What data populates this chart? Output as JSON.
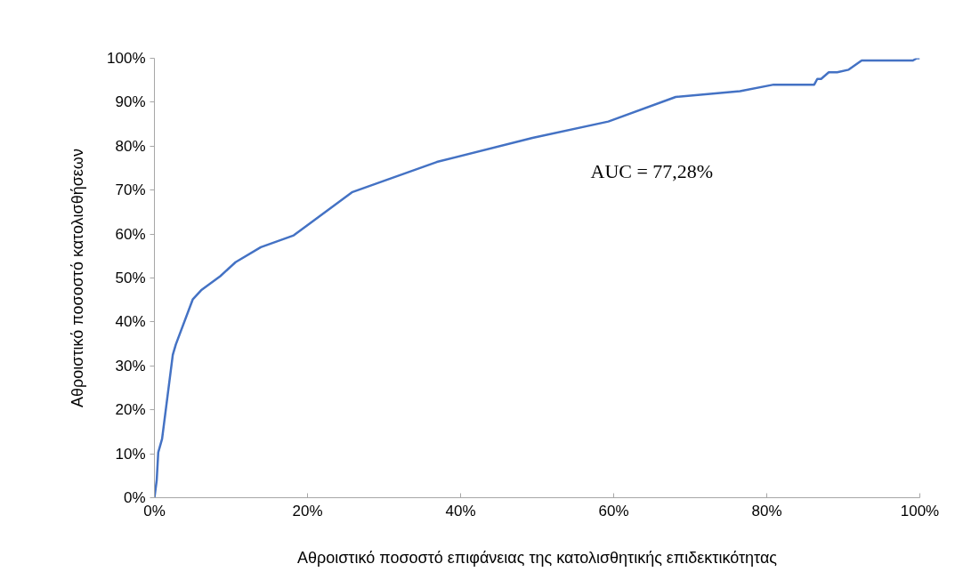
{
  "chart_data": {
    "type": "line",
    "xlabel": "Αθροιστικό ποσοστό επιφάνειας της κατολισθητικής επιδεκτικότητας",
    "ylabel": "Αθροιστικό ποσοστό κατολισθήσεων",
    "annotations": [
      "AUC = 77,28%"
    ],
    "x": [
      0,
      0.3,
      0.5,
      1.0,
      2.4,
      2.8,
      5.0,
      6.1,
      8.6,
      10.6,
      13.9,
      18.2,
      25.8,
      36.9,
      49.4,
      59.3,
      68.1,
      76.5,
      80.9,
      86.2,
      86.6,
      87.1,
      88.1,
      89.2,
      90.7,
      92.4,
      99.1,
      99.6,
      100
    ],
    "series": [
      {
        "color": "#4472c4",
        "values": [
          0,
          4,
          10.3,
          13.4,
          32.5,
          34.9,
          45.1,
          47.2,
          50.4,
          53.6,
          57.0,
          59.7,
          69.5,
          76.4,
          81.9,
          85.6,
          91.2,
          92.5,
          94.0,
          94.0,
          95.3,
          95.3,
          96.8,
          96.8,
          97.4,
          99.5,
          99.5,
          100,
          100
        ]
      }
    ],
    "xlim": [
      0,
      100
    ],
    "ylim": [
      0,
      100
    ],
    "xticks": [
      {
        "value": 0,
        "label": "0%"
      },
      {
        "value": 20,
        "label": "20%"
      },
      {
        "value": 40,
        "label": "40%"
      },
      {
        "value": 60,
        "label": "60%"
      },
      {
        "value": 80,
        "label": "80%"
      },
      {
        "value": 100,
        "label": "100%"
      }
    ],
    "yticks": [
      {
        "value": 0,
        "label": "0%"
      },
      {
        "value": 10,
        "label": "10%"
      },
      {
        "value": 20,
        "label": "20%"
      },
      {
        "value": 30,
        "label": "30%"
      },
      {
        "value": 40,
        "label": "40%"
      },
      {
        "value": 50,
        "label": "50%"
      },
      {
        "value": 60,
        "label": "60%"
      },
      {
        "value": 70,
        "label": "70%"
      },
      {
        "value": 80,
        "label": "80%"
      },
      {
        "value": 90,
        "label": "90%"
      },
      {
        "value": 100,
        "label": "100%"
      }
    ],
    "grid": false,
    "marker": "none",
    "line_style": "solid"
  }
}
